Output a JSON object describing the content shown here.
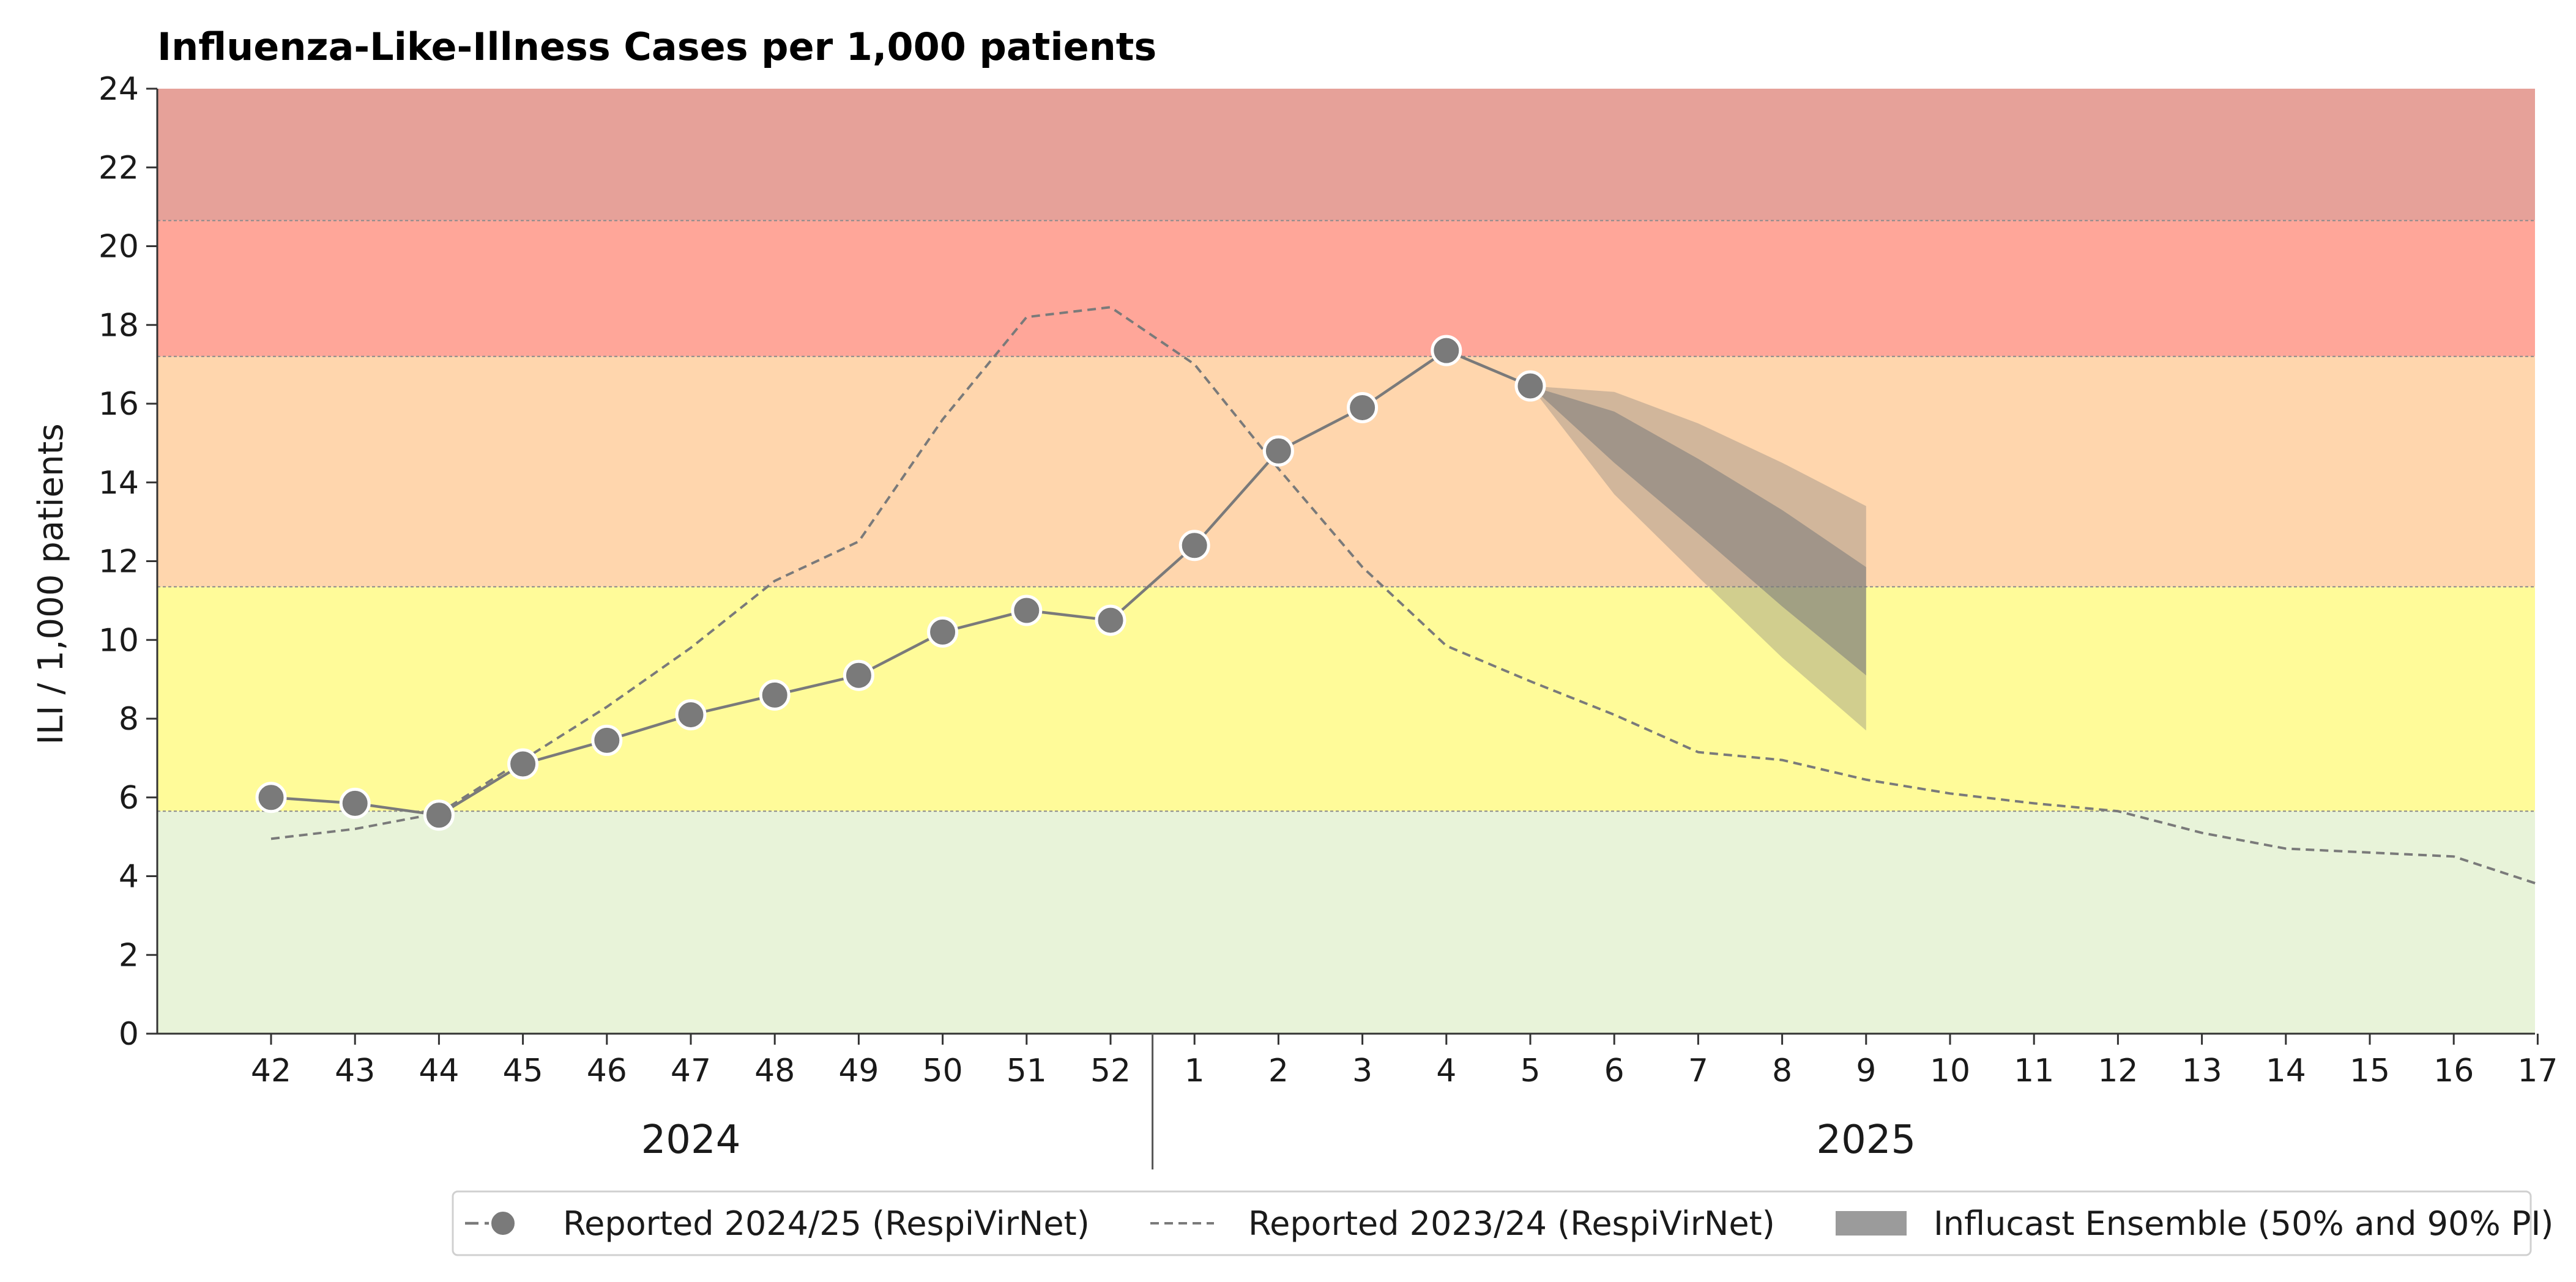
{
  "chart_data": {
    "type": "line",
    "title": "Influenza-Like-Illness Cases per 1,000 patients",
    "ylabel": "ILI / 1,000 patients",
    "xlabel": "",
    "ylim": [
      0,
      24
    ],
    "yticks": [
      0,
      2,
      4,
      6,
      8,
      10,
      12,
      14,
      16,
      18,
      20,
      22,
      24
    ],
    "weeks": [
      "42",
      "43",
      "44",
      "45",
      "46",
      "47",
      "48",
      "49",
      "50",
      "51",
      "52",
      "1",
      "2",
      "3",
      "4",
      "5",
      "6",
      "7",
      "8",
      "9",
      "10",
      "11",
      "12",
      "13",
      "14",
      "15",
      "16",
      "17"
    ],
    "year_groups": [
      {
        "label": "2024",
        "from_week_index": 0,
        "to_week_index": 10
      },
      {
        "label": "2025",
        "from_week_index": 11,
        "to_week_index": 27
      }
    ],
    "threshold_bands": [
      {
        "from": 0,
        "to": 5.65,
        "color": "#e8f3d9"
      },
      {
        "from": 5.65,
        "to": 11.35,
        "color": "#fffb99"
      },
      {
        "from": 11.35,
        "to": 17.2,
        "color": "#ffd6ad"
      },
      {
        "from": 17.2,
        "to": 20.65,
        "color": "#ffa699"
      },
      {
        "from": 20.65,
        "to": 24,
        "color": "#e6a199"
      }
    ],
    "series": [
      {
        "name": "Reported 2024/25 (RespiVirNet)",
        "style": "solid-markers",
        "color": "#7a7a7a",
        "values": [
          6.0,
          5.85,
          5.55,
          6.85,
          7.45,
          8.1,
          8.6,
          9.1,
          10.2,
          10.75,
          10.5,
          12.4,
          14.8,
          15.9,
          17.35,
          16.45
        ]
      },
      {
        "name": "Reported 2023/24 (RespiVirNet)",
        "style": "dashed",
        "color": "#7a7a7a",
        "values": [
          4.95,
          5.2,
          5.6,
          6.95,
          8.3,
          9.8,
          11.5,
          12.5,
          15.6,
          18.2,
          18.45,
          17.0,
          14.35,
          11.85,
          9.85,
          8.95,
          8.1,
          7.15,
          6.95,
          6.45,
          6.1,
          5.85,
          5.65,
          5.1,
          4.7,
          4.6,
          4.5,
          3.8
        ]
      }
    ],
    "forecast": {
      "name": "Influcast Ensemble (50% and 90% PI)",
      "color": "#7a7a7a",
      "start_week_index": 15,
      "pi90_upper": [
        16.45,
        16.3,
        15.5,
        14.5,
        13.4
      ],
      "pi90_lower": [
        16.45,
        13.7,
        11.6,
        9.55,
        7.7
      ],
      "pi50_upper": [
        16.45,
        15.8,
        14.6,
        13.3,
        11.85
      ],
      "pi50_lower": [
        16.45,
        14.5,
        12.7,
        10.85,
        9.1
      ]
    },
    "legend": {
      "position": "bottom-right",
      "entries": [
        {
          "label": "Reported 2024/25 (RespiVirNet)",
          "kind": "solid-marker"
        },
        {
          "label": "Reported 2023/24 (RespiVirNet)",
          "kind": "dashed"
        },
        {
          "label": "Influcast Ensemble (50% and 90% PI)",
          "kind": "patch"
        }
      ]
    },
    "grid": false
  }
}
